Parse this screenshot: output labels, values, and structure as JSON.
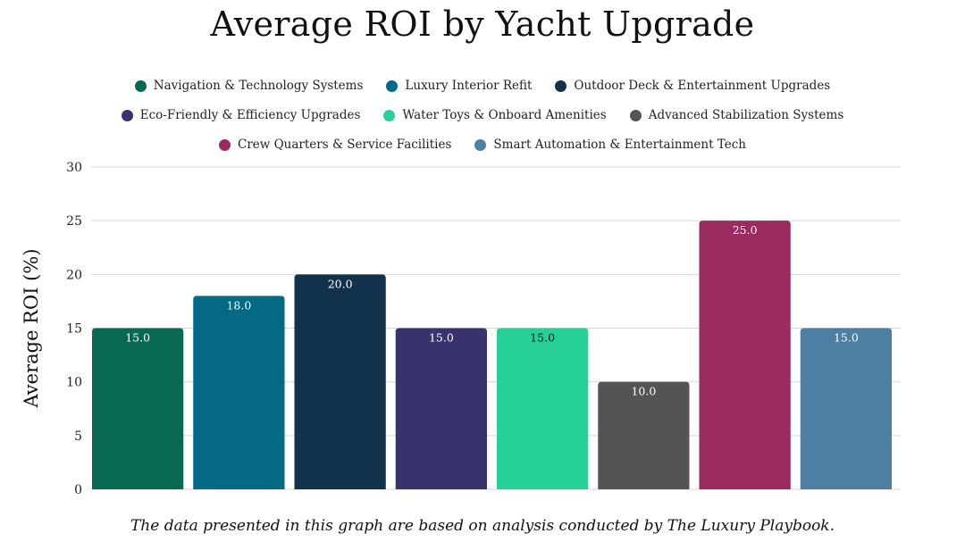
{
  "chart_data": {
    "type": "bar",
    "title": "Average ROI by Yacht Upgrade",
    "ylabel": "Average ROI (%)",
    "xlabel": "",
    "ylim": [
      0,
      30
    ],
    "yticks": [
      0,
      5,
      10,
      15,
      20,
      25,
      30
    ],
    "grid": true,
    "legend_position": "top",
    "categories": [
      "Navigation & Technology Systems",
      "Luxury Interior Refit",
      "Outdoor Deck & Entertainment Upgrades",
      "Eco-Friendly & Efficiency Upgrades",
      "Water Toys & Onboard Amenities",
      "Advanced Stabilization Systems",
      "Crew Quarters & Service Facilities",
      "Smart Automation & Entertainment Tech"
    ],
    "values": [
      15.0,
      18.0,
      20.0,
      15.0,
      15.0,
      10.0,
      25.0,
      15.0
    ],
    "value_labels": [
      "15.0",
      "18.0",
      "20.0",
      "15.0",
      "15.0",
      "10.0",
      "25.0",
      "15.0"
    ],
    "colors": [
      "#076951",
      "#036985",
      "#12314b",
      "#39336d",
      "#27d096",
      "#545454",
      "#9a2a60",
      "#4c7fa3"
    ],
    "value_label_colors": [
      "#ffffff",
      "#ffffff",
      "#ffffff",
      "#ffffff",
      "#111111",
      "#ffffff",
      "#ffffff",
      "#ffffff"
    ]
  },
  "footer": {
    "caption": "The data presented in this graph are based on analysis conducted by The Luxury Playbook."
  }
}
